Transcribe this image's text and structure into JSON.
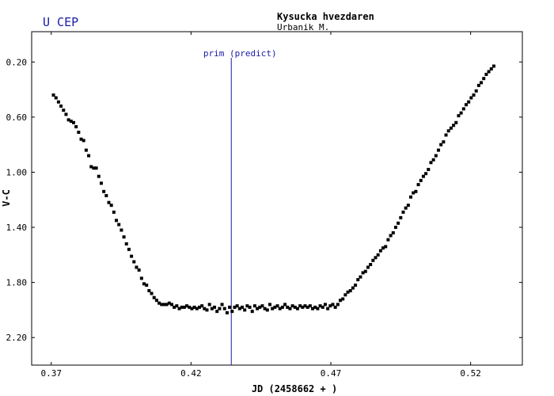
{
  "chart_data": {
    "type": "scatter",
    "title": "U CEP",
    "observatory": "Kysucka hvezdaren",
    "observer": "Urbanik M.",
    "xlabel": "JD (2458662 + )",
    "ylabel": "V-C",
    "xlim": [
      0.365,
      0.5405
    ],
    "ylim": [
      2.4,
      -0.02
    ],
    "y_inverted": true,
    "x_ticks": [
      "0.37",
      "0.42",
      "0.47",
      "0.52"
    ],
    "x_tick_values": [
      0.372,
      0.422,
      0.472,
      0.522
    ],
    "y_ticks": [
      "0.20",
      "0.60",
      "1.00",
      "1.40",
      "1.80",
      "2.20"
    ],
    "y_tick_values": [
      0.2,
      0.6,
      1.0,
      1.4,
      1.8,
      2.2
    ],
    "grid": false,
    "prediction": {
      "label": "prim (predict)",
      "x": 0.4364
    },
    "colors": {
      "points": "#000000",
      "prediction": "#1a1aa8",
      "title": "#1a1aa8"
    },
    "points": [
      [
        0.3728,
        0.44
      ],
      [
        0.3737,
        0.46
      ],
      [
        0.3746,
        0.49
      ],
      [
        0.3755,
        0.52
      ],
      [
        0.3764,
        0.55
      ],
      [
        0.3773,
        0.58
      ],
      [
        0.3782,
        0.62
      ],
      [
        0.3791,
        0.63
      ],
      [
        0.38,
        0.64
      ],
      [
        0.3809,
        0.67
      ],
      [
        0.3818,
        0.71
      ],
      [
        0.3827,
        0.76
      ],
      [
        0.3836,
        0.77
      ],
      [
        0.3845,
        0.84
      ],
      [
        0.3854,
        0.88
      ],
      [
        0.3863,
        0.96
      ],
      [
        0.3872,
        0.97
      ],
      [
        0.3881,
        0.97
      ],
      [
        0.389,
        1.03
      ],
      [
        0.3899,
        1.08
      ],
      [
        0.3908,
        1.14
      ],
      [
        0.3917,
        1.17
      ],
      [
        0.3926,
        1.22
      ],
      [
        0.3935,
        1.24
      ],
      [
        0.3944,
        1.29
      ],
      [
        0.3953,
        1.35
      ],
      [
        0.3962,
        1.38
      ],
      [
        0.3971,
        1.42
      ],
      [
        0.398,
        1.47
      ],
      [
        0.3989,
        1.52
      ],
      [
        0.3998,
        1.56
      ],
      [
        0.4007,
        1.61
      ],
      [
        0.4016,
        1.65
      ],
      [
        0.4025,
        1.69
      ],
      [
        0.4034,
        1.71
      ],
      [
        0.4043,
        1.77
      ],
      [
        0.4052,
        1.81
      ],
      [
        0.4061,
        1.82
      ],
      [
        0.407,
        1.86
      ],
      [
        0.4079,
        1.88
      ],
      [
        0.4088,
        1.91
      ],
      [
        0.4097,
        1.93
      ],
      [
        0.4106,
        1.95
      ],
      [
        0.4115,
        1.96
      ],
      [
        0.4124,
        1.96
      ],
      [
        0.4133,
        1.96
      ],
      [
        0.4142,
        1.95
      ],
      [
        0.4151,
        1.96
      ],
      [
        0.416,
        1.98
      ],
      [
        0.4169,
        1.97
      ],
      [
        0.4178,
        1.99
      ],
      [
        0.4187,
        1.98
      ],
      [
        0.4196,
        1.98
      ],
      [
        0.4205,
        1.97
      ],
      [
        0.4214,
        1.98
      ],
      [
        0.4223,
        1.99
      ],
      [
        0.4232,
        1.98
      ],
      [
        0.4241,
        1.99
      ],
      [
        0.425,
        1.98
      ],
      [
        0.4259,
        1.97
      ],
      [
        0.4268,
        1.99
      ],
      [
        0.4277,
        2.0
      ],
      [
        0.4286,
        1.96
      ],
      [
        0.4295,
        1.99
      ],
      [
        0.4304,
        1.98
      ],
      [
        0.4313,
        2.01
      ],
      [
        0.4322,
        1.99
      ],
      [
        0.4331,
        1.96
      ],
      [
        0.434,
        1.99
      ],
      [
        0.4349,
        2.02
      ],
      [
        0.4358,
        1.98
      ],
      [
        0.4367,
        2.01
      ],
      [
        0.4376,
        1.98
      ],
      [
        0.4385,
        1.97
      ],
      [
        0.4394,
        1.99
      ],
      [
        0.4403,
        1.98
      ],
      [
        0.4412,
        2.0
      ],
      [
        0.4421,
        1.97
      ],
      [
        0.443,
        1.98
      ],
      [
        0.4439,
        2.01
      ],
      [
        0.4448,
        1.97
      ],
      [
        0.4457,
        1.99
      ],
      [
        0.4466,
        1.98
      ],
      [
        0.4475,
        1.97
      ],
      [
        0.4484,
        1.99
      ],
      [
        0.4493,
        2.0
      ],
      [
        0.4502,
        1.96
      ],
      [
        0.4511,
        1.99
      ],
      [
        0.452,
        1.98
      ],
      [
        0.4529,
        1.97
      ],
      [
        0.4538,
        1.99
      ],
      [
        0.4547,
        1.98
      ],
      [
        0.4556,
        1.96
      ],
      [
        0.4565,
        1.98
      ],
      [
        0.4574,
        1.99
      ],
      [
        0.4583,
        1.97
      ],
      [
        0.4592,
        1.98
      ],
      [
        0.4601,
        1.99
      ],
      [
        0.461,
        1.97
      ],
      [
        0.4619,
        1.98
      ],
      [
        0.4628,
        1.97
      ],
      [
        0.4637,
        1.98
      ],
      [
        0.4646,
        1.97
      ],
      [
        0.4655,
        1.99
      ],
      [
        0.4664,
        1.98
      ],
      [
        0.4673,
        1.99
      ],
      [
        0.4682,
        1.97
      ],
      [
        0.4691,
        1.98
      ],
      [
        0.47,
        1.96
      ],
      [
        0.4709,
        1.99
      ],
      [
        0.4718,
        1.97
      ],
      [
        0.4727,
        1.96
      ],
      [
        0.4736,
        1.98
      ],
      [
        0.4745,
        1.96
      ],
      [
        0.4754,
        1.93
      ],
      [
        0.4763,
        1.92
      ],
      [
        0.4772,
        1.89
      ],
      [
        0.4781,
        1.87
      ],
      [
        0.479,
        1.86
      ],
      [
        0.4799,
        1.84
      ],
      [
        0.4808,
        1.82
      ],
      [
        0.4817,
        1.78
      ],
      [
        0.4826,
        1.76
      ],
      [
        0.4835,
        1.73
      ],
      [
        0.4844,
        1.72
      ],
      [
        0.4853,
        1.69
      ],
      [
        0.4862,
        1.67
      ],
      [
        0.4871,
        1.64
      ],
      [
        0.488,
        1.62
      ],
      [
        0.4889,
        1.6
      ],
      [
        0.4898,
        1.57
      ],
      [
        0.4907,
        1.55
      ],
      [
        0.4916,
        1.54
      ],
      [
        0.4925,
        1.49
      ],
      [
        0.4934,
        1.46
      ],
      [
        0.4943,
        1.44
      ],
      [
        0.4952,
        1.4
      ],
      [
        0.4961,
        1.37
      ],
      [
        0.497,
        1.33
      ],
      [
        0.4979,
        1.29
      ],
      [
        0.4988,
        1.26
      ],
      [
        0.4997,
        1.24
      ],
      [
        0.5006,
        1.18
      ],
      [
        0.5015,
        1.15
      ],
      [
        0.5024,
        1.14
      ],
      [
        0.5033,
        1.09
      ],
      [
        0.5042,
        1.06
      ],
      [
        0.5051,
        1.03
      ],
      [
        0.506,
        1.01
      ],
      [
        0.5069,
        0.98
      ],
      [
        0.5078,
        0.93
      ],
      [
        0.5087,
        0.91
      ],
      [
        0.5096,
        0.88
      ],
      [
        0.5105,
        0.84
      ],
      [
        0.5114,
        0.8
      ],
      [
        0.5123,
        0.78
      ],
      [
        0.5132,
        0.73
      ],
      [
        0.5141,
        0.7
      ],
      [
        0.515,
        0.68
      ],
      [
        0.5159,
        0.66
      ],
      [
        0.5168,
        0.64
      ],
      [
        0.5177,
        0.59
      ],
      [
        0.5186,
        0.57
      ],
      [
        0.5195,
        0.54
      ],
      [
        0.5204,
        0.51
      ],
      [
        0.5213,
        0.49
      ],
      [
        0.5222,
        0.46
      ],
      [
        0.5231,
        0.44
      ],
      [
        0.524,
        0.41
      ],
      [
        0.5249,
        0.37
      ],
      [
        0.5258,
        0.35
      ],
      [
        0.5267,
        0.32
      ],
      [
        0.5276,
        0.29
      ],
      [
        0.5285,
        0.27
      ],
      [
        0.5294,
        0.25
      ],
      [
        0.5303,
        0.23
      ]
    ]
  }
}
